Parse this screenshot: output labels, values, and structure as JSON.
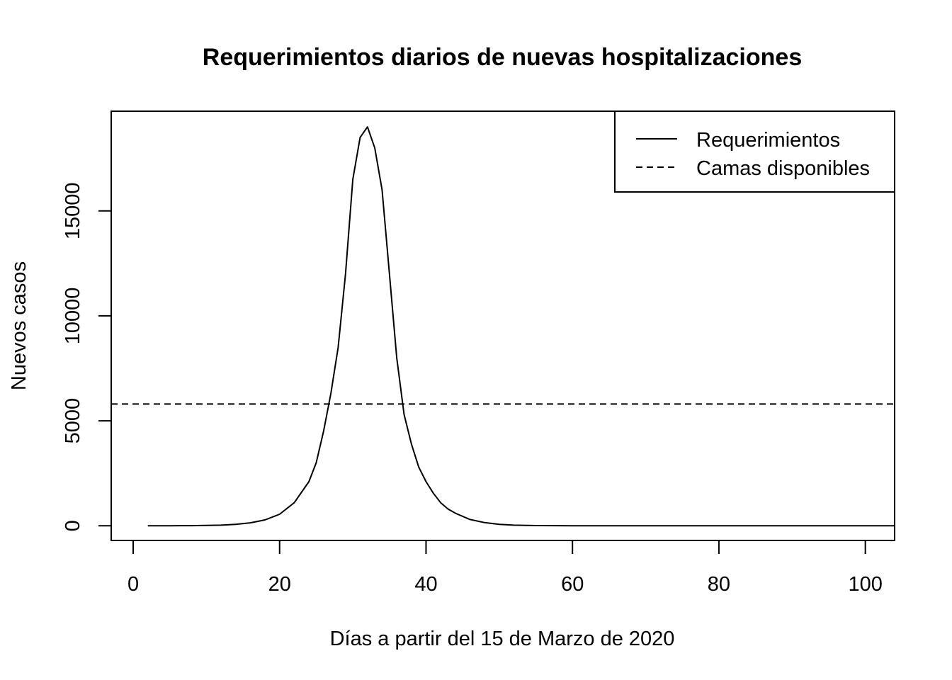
{
  "chart_data": {
    "type": "line",
    "title": "Requerimientos diarios de nuevas hospitalizaciones",
    "xlabel": "Días a partir del 15 de Marzo de 2020",
    "ylabel": "Nuevos casos",
    "xlim": [
      -3,
      104
    ],
    "ylim": [
      -700,
      19750
    ],
    "x_ticks": [
      0,
      20,
      40,
      60,
      80,
      100
    ],
    "y_ticks": [
      0,
      5000,
      10000,
      15000
    ],
    "grid": false,
    "legend": {
      "position": "top-right",
      "entries": [
        {
          "label": "Requerimientos",
          "line_style": "solid"
        },
        {
          "label": "Camas disponibles",
          "line_style": "dashed"
        }
      ]
    },
    "series": [
      {
        "name": "Requerimientos",
        "line_style": "solid",
        "color": "#000000",
        "x": [
          2,
          5,
          8,
          10,
          12,
          14,
          16,
          18,
          20,
          22,
          24,
          25,
          26,
          27,
          28,
          29,
          30,
          31,
          32,
          33,
          34,
          35,
          36,
          37,
          38,
          39,
          40,
          41,
          42,
          43,
          44,
          46,
          48,
          50,
          52,
          55,
          60,
          70,
          80,
          90,
          100,
          104
        ],
        "y": [
          0,
          2,
          6,
          14,
          30,
          65,
          140,
          280,
          550,
          1100,
          2100,
          3000,
          4500,
          6300,
          8500,
          12000,
          16500,
          18500,
          19000,
          18000,
          16000,
          12000,
          8000,
          5300,
          3900,
          2800,
          2100,
          1550,
          1100,
          800,
          600,
          300,
          150,
          70,
          30,
          10,
          3,
          0,
          0,
          0,
          0,
          0
        ]
      },
      {
        "name": "Camas disponibles",
        "line_style": "dashed",
        "color": "#000000",
        "y_constant": 5800
      }
    ]
  }
}
